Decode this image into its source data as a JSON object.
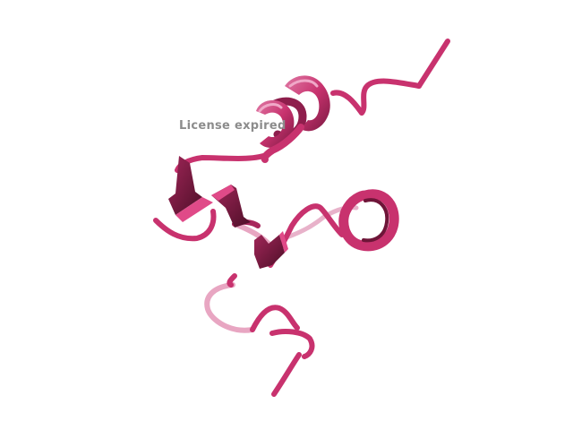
{
  "viewer": {
    "watermark_text": "License expired",
    "background_color": "#ffffff",
    "watermark_color": "#8c8c8c"
  },
  "molecule": {
    "representation": "cartoon",
    "colors": {
      "main": "#c8326e",
      "dark": "#6e1538",
      "light": "#e8a6c2",
      "highlight": "#e04a88"
    }
  }
}
